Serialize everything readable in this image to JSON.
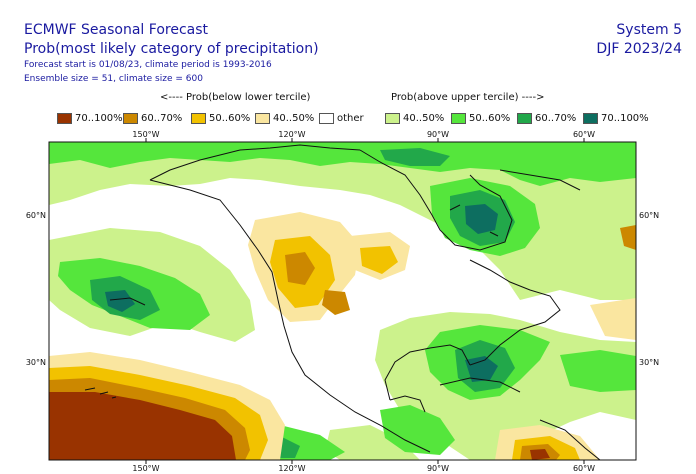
{
  "header": {
    "title": "ECMWF Seasonal Forecast",
    "subtitle": "Prob(most likely category of precipitation)",
    "forecast_info": "Forecast start is 01/08/23, climate period is 1993-2016",
    "ensemble_info": "Ensemble size = 51, climate size = 600",
    "system": "System 5",
    "season": "DJF 2023/24"
  },
  "legend": {
    "below_title": "<---- Prob(below lower tercile)",
    "above_title": "Prob(above upper tercile) ---->",
    "items": [
      {
        "label": "70..100%",
        "color": "#993300"
      },
      {
        "label": "60..70%",
        "color": "#cc8800"
      },
      {
        "label": "50..60%",
        "color": "#f2c200"
      },
      {
        "label": "40..50%",
        "color": "#fae6a0"
      },
      {
        "label": "other",
        "color": "#ffffff"
      },
      {
        "label": "40..50%",
        "color": "#ccf28c"
      },
      {
        "label": "50..60%",
        "color": "#55e63c"
      },
      {
        "label": "60..70%",
        "color": "#22a84a"
      },
      {
        "label": "70..100%",
        "color": "#0d6e60"
      }
    ]
  },
  "map": {
    "top_lon_labels": [
      "150°W",
      "120°W",
      "90°W",
      "60°W"
    ],
    "bottom_lon_labels": [
      "150°W",
      "120°W",
      "90°W",
      "60°W"
    ],
    "left_lat_labels": [
      "60°N",
      "30°N"
    ],
    "right_lat_labels": [
      "60°N",
      "30°N"
    ]
  }
}
